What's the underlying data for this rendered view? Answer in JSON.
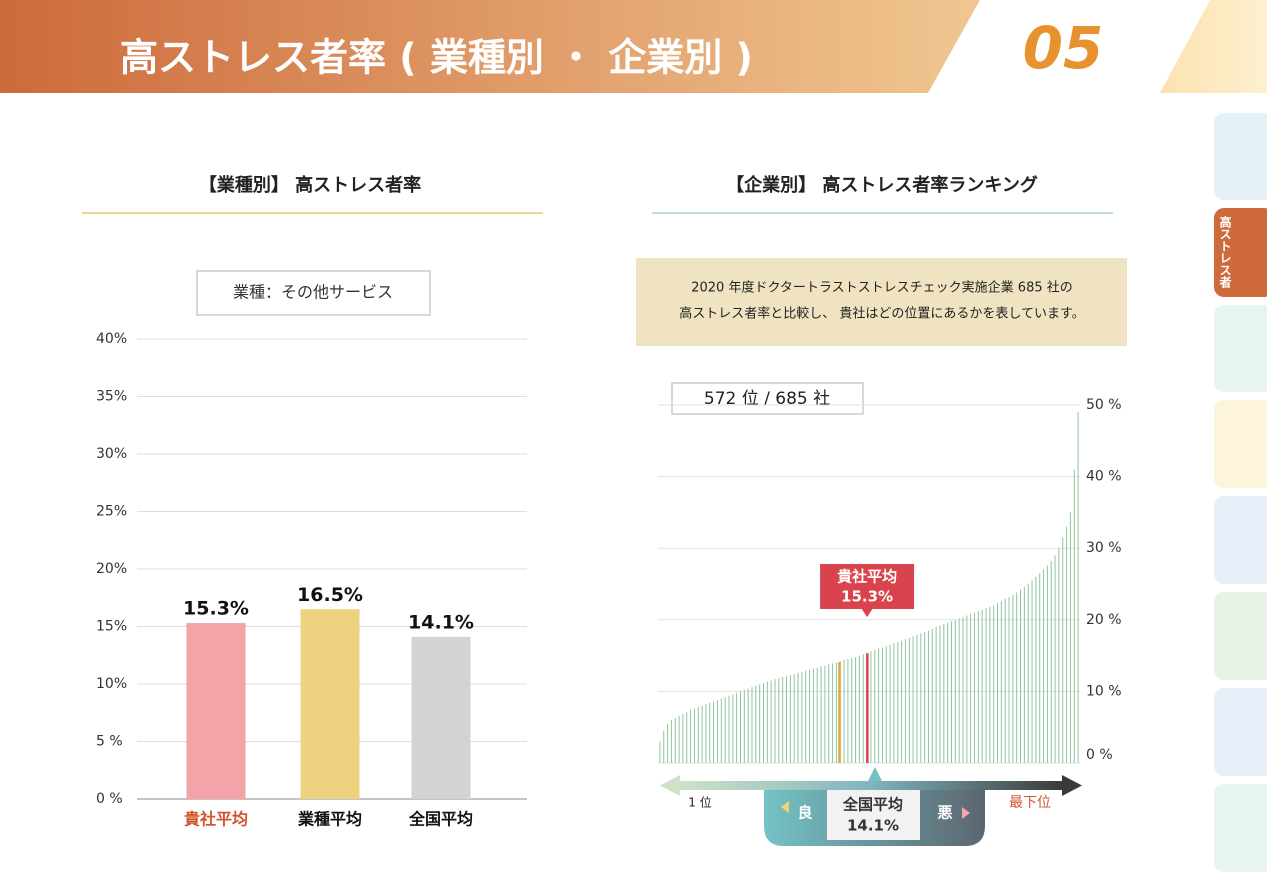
{
  "header": {
    "title": "高ストレス者率 ( 業種別 ・ 企業別 )",
    "page_number": "05"
  },
  "side_tab": "高ストレス者",
  "chart_data": [
    {
      "type": "bar",
      "title": "【業種別】 高ストレス者率",
      "industry_label": "業種：その他サービス",
      "categories": [
        "貴社平均",
        "業種平均",
        "全国平均"
      ],
      "values": [
        15.3,
        16.5,
        14.1
      ],
      "value_labels": [
        "15.3%",
        "16.5%",
        "14.1%"
      ],
      "colors": [
        "#f4a4a8",
        "#efd27f",
        "#d3d3d5"
      ],
      "highlight_category_color": "#d2542f",
      "ylim": [
        0,
        40
      ],
      "yticks": [
        {
          "value": 0,
          "label": "0 %"
        },
        {
          "value": 5,
          "label": "5 %"
        },
        {
          "value": 10,
          "label": "10%"
        },
        {
          "value": 15,
          "label": "15%"
        },
        {
          "value": 20,
          "label": "20%"
        },
        {
          "value": 25,
          "label": "25%"
        },
        {
          "value": 30,
          "label": "30%"
        },
        {
          "value": 35,
          "label": "35%"
        },
        {
          "value": 40,
          "label": "40%"
        }
      ],
      "grid": true
    },
    {
      "type": "bar",
      "title": "【企業別】 高ストレス者率ランキング",
      "description": [
        "2020 年度ドクタートラストストレスチェック実施企業 685 社の",
        "高ストレス者率と比較し、 貴社はどの位置にあるかを表しています。"
      ],
      "rank": "572 位 / 685 社",
      "color": "#8fc49d",
      "values": [
        3,
        4.5,
        5.5,
        6,
        6.3,
        6.6,
        6.9,
        7.1,
        7.4,
        7.6,
        7.8,
        8,
        8.2,
        8.4,
        8.6,
        8.8,
        9,
        9.2,
        9.4,
        9.6,
        9.8,
        10,
        10.2,
        10.4,
        10.6,
        10.8,
        11,
        11.2,
        11.4,
        11.5,
        11.7,
        11.8,
        12,
        12.1,
        12.3,
        12.4,
        12.6,
        12.7,
        12.9,
        13,
        13.2,
        13.3,
        13.5,
        13.6,
        13.8,
        13.9,
        14,
        14.2,
        14.4,
        14.5,
        14.7,
        14.8,
        15,
        15.2,
        15.4,
        15.6,
        15.8,
        16,
        16.1,
        16.3,
        16.5,
        16.7,
        16.9,
        17.1,
        17.3,
        17.5,
        17.7,
        17.9,
        18.1,
        18.3,
        18.5,
        18.7,
        19,
        19.2,
        19.4,
        19.6,
        19.8,
        20,
        20.2,
        20.4,
        20.6,
        20.8,
        21,
        21.2,
        21.4,
        21.6,
        21.8,
        22,
        22.3,
        22.6,
        22.9,
        23.2,
        23.5,
        23.8,
        24.2,
        24.6,
        25,
        25.5,
        26,
        26.5,
        27,
        27.6,
        28.2,
        29,
        30,
        31.5,
        33,
        35,
        41,
        49
      ],
      "markers": [
        {
          "label": "貴社平均",
          "value": 15.3,
          "value_label": "15.3%",
          "color": "#d9434e"
        },
        {
          "label": "全国平均",
          "value": 14.1,
          "value_label": "14.1%",
          "color": "#e8a33c"
        }
      ],
      "ylim": [
        0,
        50
      ],
      "yticks": [
        {
          "value": 0,
          "label": "0 %"
        },
        {
          "value": 10,
          "label": "10 %"
        },
        {
          "value": 20,
          "label": "20 %"
        },
        {
          "value": 30,
          "label": "30 %"
        },
        {
          "value": 40,
          "label": "40 %"
        },
        {
          "value": 50,
          "label": "50 %"
        }
      ],
      "grid": true,
      "axis_labels": {
        "start": "1 位",
        "end": "最下位",
        "good": "良",
        "bad": "悪"
      }
    }
  ]
}
